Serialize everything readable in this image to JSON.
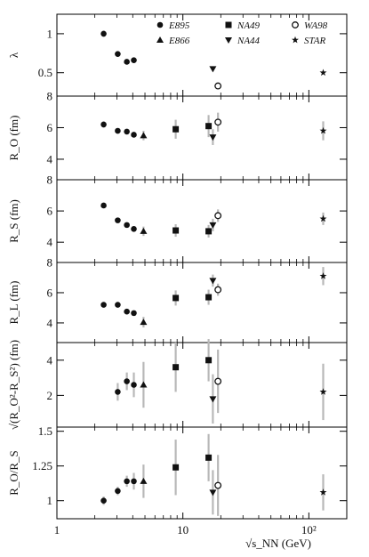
{
  "chart_data": [
    {
      "id": "lambda",
      "type": "scatter",
      "ylabel": "λ",
      "ylim": [
        0.2,
        1.25
      ],
      "yticks": [
        {
          "v": 1,
          "label": "1"
        },
        {
          "v": 0.5,
          "label": "0.5"
        }
      ],
      "series": [
        {
          "name": "E895",
          "marker": "circle",
          "points": [
            {
              "x": 2.35,
              "y": 1.0,
              "err": 0.04
            },
            {
              "x": 3.04,
              "y": 0.74
            },
            {
              "x": 3.59,
              "y": 0.64
            },
            {
              "x": 4.08,
              "y": 0.66
            }
          ]
        },
        {
          "name": "NA44",
          "marker": "triangle-down",
          "points": [
            {
              "x": 17.3,
              "y": 0.55
            }
          ]
        },
        {
          "name": "WA98",
          "marker": "circle-open",
          "points": [
            {
              "x": 19.0,
              "y": 0.33
            }
          ]
        },
        {
          "name": "STAR",
          "marker": "star",
          "points": [
            {
              "x": 130,
              "y": 0.5
            }
          ]
        }
      ]
    },
    {
      "id": "ro",
      "type": "scatter",
      "ylabel": "R_O (fm)",
      "ylim": [
        2.7,
        8.0
      ],
      "yticks": [
        {
          "v": 8,
          "label": "8"
        },
        {
          "v": 6,
          "label": "6"
        },
        {
          "v": 4,
          "label": "4"
        }
      ],
      "series": [
        {
          "name": "E895",
          "marker": "circle",
          "points": [
            {
              "x": 2.35,
              "y": 6.2,
              "err": 0.2
            },
            {
              "x": 3.04,
              "y": 5.8
            },
            {
              "x": 3.59,
              "y": 5.75
            },
            {
              "x": 4.08,
              "y": 5.55
            }
          ]
        },
        {
          "name": "E866",
          "marker": "triangle-up",
          "points": [
            {
              "x": 4.87,
              "y": 5.5,
              "err": 0.3
            }
          ]
        },
        {
          "name": "NA49",
          "marker": "square",
          "points": [
            {
              "x": 8.77,
              "y": 5.9,
              "err": 0.6
            },
            {
              "x": 16.0,
              "y": 6.1,
              "err": 0.7
            }
          ]
        },
        {
          "name": "NA44",
          "marker": "triangle-down",
          "points": [
            {
              "x": 17.3,
              "y": 5.4,
              "err": 0.5
            }
          ]
        },
        {
          "name": "WA98",
          "marker": "circle-open",
          "points": [
            {
              "x": 19.0,
              "y": 6.35,
              "err": 0.6
            }
          ]
        },
        {
          "name": "STAR",
          "marker": "star",
          "points": [
            {
              "x": 130,
              "y": 5.8,
              "err": 0.6
            }
          ]
        }
      ]
    },
    {
      "id": "rs",
      "type": "scatter",
      "ylabel": "R_S (fm)",
      "ylim": [
        2.7,
        8.0
      ],
      "yticks": [
        {
          "v": 8,
          "label": "8"
        },
        {
          "v": 6,
          "label": "6"
        },
        {
          "v": 4,
          "label": "4"
        }
      ],
      "series": [
        {
          "name": "E895",
          "marker": "circle",
          "points": [
            {
              "x": 2.35,
              "y": 6.35
            },
            {
              "x": 3.04,
              "y": 5.4
            },
            {
              "x": 3.59,
              "y": 5.1
            },
            {
              "x": 4.08,
              "y": 4.85
            }
          ]
        },
        {
          "name": "E866",
          "marker": "triangle-up",
          "points": [
            {
              "x": 4.87,
              "y": 4.7,
              "err": 0.3
            }
          ]
        },
        {
          "name": "NA49",
          "marker": "square",
          "points": [
            {
              "x": 8.77,
              "y": 4.75,
              "err": 0.4
            },
            {
              "x": 16.0,
              "y": 4.7,
              "err": 0.4
            }
          ]
        },
        {
          "name": "NA44",
          "marker": "triangle-down",
          "points": [
            {
              "x": 17.3,
              "y": 5.1,
              "err": 0.4
            }
          ]
        },
        {
          "name": "WA98",
          "marker": "circle-open",
          "points": [
            {
              "x": 19.0,
              "y": 5.7,
              "err": 0.4
            }
          ]
        },
        {
          "name": "STAR",
          "marker": "star",
          "points": [
            {
              "x": 130,
              "y": 5.5,
              "err": 0.4
            }
          ]
        }
      ]
    },
    {
      "id": "rl",
      "type": "scatter",
      "ylabel": "R_L (fm)",
      "ylim": [
        2.7,
        8.0
      ],
      "yticks": [
        {
          "v": 8,
          "label": "8"
        },
        {
          "v": 6,
          "label": "6"
        },
        {
          "v": 4,
          "label": "4"
        }
      ],
      "series": [
        {
          "name": "E895",
          "marker": "circle",
          "points": [
            {
              "x": 2.35,
              "y": 5.2
            },
            {
              "x": 3.04,
              "y": 5.2
            },
            {
              "x": 3.59,
              "y": 4.75
            },
            {
              "x": 4.08,
              "y": 4.65
            }
          ]
        },
        {
          "name": "E866",
          "marker": "triangle-up",
          "points": [
            {
              "x": 4.87,
              "y": 4.05,
              "err": 0.35
            }
          ]
        },
        {
          "name": "NA49",
          "marker": "square",
          "points": [
            {
              "x": 8.77,
              "y": 5.65,
              "err": 0.5
            },
            {
              "x": 16.0,
              "y": 5.7,
              "err": 0.5
            }
          ]
        },
        {
          "name": "NA44",
          "marker": "triangle-down",
          "points": [
            {
              "x": 17.3,
              "y": 6.8,
              "err": 0.4
            }
          ]
        },
        {
          "name": "WA98",
          "marker": "circle-open",
          "points": [
            {
              "x": 19.0,
              "y": 6.2,
              "err": 0.4
            }
          ]
        },
        {
          "name": "STAR",
          "marker": "star",
          "points": [
            {
              "x": 130,
              "y": 7.1,
              "err": 0.6
            }
          ]
        }
      ]
    },
    {
      "id": "diff",
      "type": "scatter",
      "ylabel": "√(R_O²-R_S²) (fm)",
      "ylim": [
        0.2,
        5.0
      ],
      "yticks": [
        {
          "v": 4,
          "label": "4"
        },
        {
          "v": 2,
          "label": "2"
        }
      ],
      "series": [
        {
          "name": "E895",
          "marker": "circle",
          "points": [
            {
              "x": 3.04,
              "y": 2.2,
              "err": 0.5
            },
            {
              "x": 3.59,
              "y": 2.8,
              "err": 0.5
            },
            {
              "x": 4.08,
              "y": 2.6,
              "err": 0.7
            }
          ]
        },
        {
          "name": "E866",
          "marker": "triangle-up",
          "points": [
            {
              "x": 4.87,
              "y": 2.6,
              "err": 1.3
            }
          ]
        },
        {
          "name": "NA49",
          "marker": "square",
          "points": [
            {
              "x": 8.77,
              "y": 3.6,
              "err": 1.4
            },
            {
              "x": 16.0,
              "y": 4.0,
              "err": 1.2
            }
          ]
        },
        {
          "name": "NA44",
          "marker": "triangle-down",
          "points": [
            {
              "x": 17.3,
              "y": 1.8,
              "err": 1.4
            }
          ]
        },
        {
          "name": "WA98",
          "marker": "circle-open",
          "points": [
            {
              "x": 19.0,
              "y": 2.8,
              "err": 1.8
            }
          ]
        },
        {
          "name": "STAR",
          "marker": "star",
          "points": [
            {
              "x": 130,
              "y": 2.2,
              "err": 1.6
            }
          ]
        }
      ]
    },
    {
      "id": "ratio",
      "type": "scatter",
      "ylabel": "R_O/R_S",
      "ylim": [
        0.87,
        1.53
      ],
      "yticks": [
        {
          "v": 1.5,
          "label": "1.5"
        },
        {
          "v": 1.25,
          "label": "1.25"
        },
        {
          "v": 1,
          "label": "1"
        }
      ],
      "series": [
        {
          "name": "E895",
          "marker": "circle",
          "points": [
            {
              "x": 2.35,
              "y": 1.0,
              "err": 0.03
            },
            {
              "x": 3.04,
              "y": 1.07,
              "err": 0.03
            },
            {
              "x": 3.59,
              "y": 1.14,
              "err": 0.04
            },
            {
              "x": 4.08,
              "y": 1.14,
              "err": 0.06
            }
          ]
        },
        {
          "name": "E866",
          "marker": "triangle-up",
          "points": [
            {
              "x": 4.87,
              "y": 1.14,
              "err": 0.12
            }
          ]
        },
        {
          "name": "NA49",
          "marker": "square",
          "points": [
            {
              "x": 8.77,
              "y": 1.24,
              "err": 0.2
            },
            {
              "x": 16.0,
              "y": 1.31,
              "err": 0.17
            }
          ]
        },
        {
          "name": "NA44",
          "marker": "triangle-down",
          "points": [
            {
              "x": 17.3,
              "y": 1.06,
              "err": 0.16
            }
          ]
        },
        {
          "name": "WA98",
          "marker": "circle-open",
          "points": [
            {
              "x": 19.0,
              "y": 1.11,
              "err": 0.22
            }
          ]
        },
        {
          "name": "STAR",
          "marker": "star",
          "points": [
            {
              "x": 130,
              "y": 1.06,
              "err": 0.13
            }
          ]
        }
      ]
    }
  ],
  "x_axis": {
    "scale": "log",
    "xlim": [
      1,
      200
    ],
    "label": "√s_NN (GeV)",
    "ticks": [
      {
        "v": 1,
        "label": "1"
      },
      {
        "v": 10,
        "label": "10"
      },
      {
        "v": 100,
        "label": "10²"
      }
    ]
  },
  "legend": {
    "placement": "top-right",
    "entries": [
      {
        "name": "E895",
        "marker": "circle"
      },
      {
        "name": "NA49",
        "marker": "square"
      },
      {
        "name": "WA98",
        "marker": "circle-open"
      },
      {
        "name": "E866",
        "marker": "triangle-up"
      },
      {
        "name": "NA44",
        "marker": "triangle-down"
      },
      {
        "name": "STAR",
        "marker": "star"
      }
    ]
  },
  "colors": {
    "marker": "#111111",
    "errorbar": "#b8b8b8",
    "axis": "#000000"
  }
}
